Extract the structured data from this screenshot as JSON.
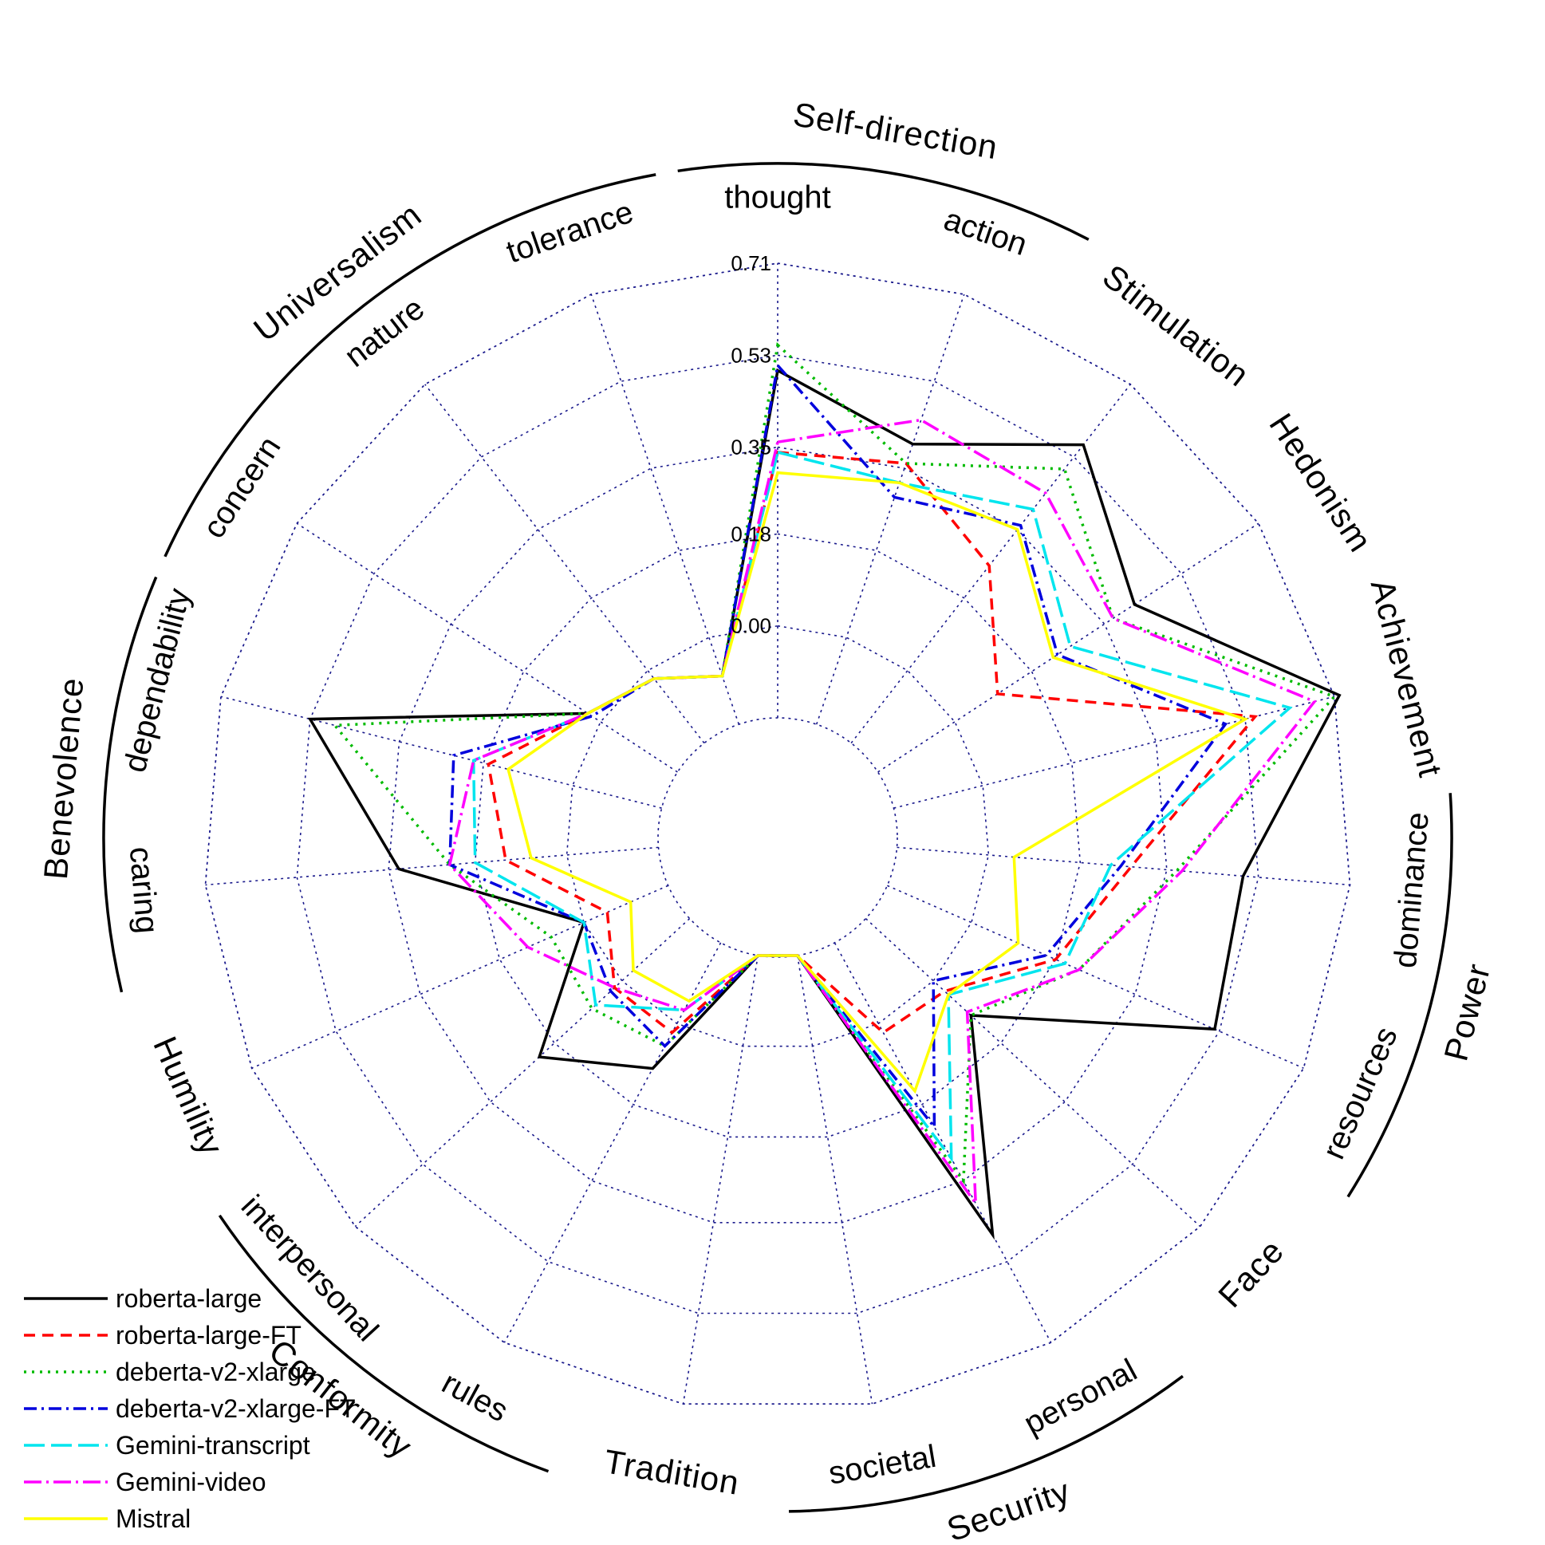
{
  "chart_data": {
    "type": "radar",
    "title": "",
    "radial_ticks": [
      "0.00",
      "0.18",
      "0.35",
      "0.53",
      "0.71"
    ],
    "rlim": [
      -0.18,
      0.71
    ],
    "axes": [
      "thought",
      "action",
      "Stimulation",
      "Hedonism",
      "Achievement",
      "dominance",
      "resources",
      "Face",
      "personal",
      "societal",
      "Tradition",
      "rules",
      "interpersonal",
      "Humility",
      "caring",
      "dependability",
      "concern",
      "nature",
      "tolerance"
    ],
    "groups": [
      {
        "label": "Self-direction",
        "axes": [
          "thought",
          "action"
        ],
        "arc": true
      },
      {
        "label": "Stimulation",
        "axes": [
          "Stimulation"
        ],
        "arc": false
      },
      {
        "label": "Hedonism",
        "axes": [
          "Hedonism"
        ],
        "arc": false
      },
      {
        "label": "Achievement",
        "axes": [
          "Achievement"
        ],
        "arc": false
      },
      {
        "label": "Power",
        "axes": [
          "dominance",
          "resources"
        ],
        "arc": true
      },
      {
        "label": "Face",
        "axes": [
          "Face"
        ],
        "arc": false
      },
      {
        "label": "Security",
        "axes": [
          "personal",
          "societal"
        ],
        "arc": true
      },
      {
        "label": "Tradition",
        "axes": [
          "Tradition"
        ],
        "arc": false
      },
      {
        "label": "Conformity",
        "axes": [
          "rules",
          "interpersonal"
        ],
        "arc": true
      },
      {
        "label": "Humility",
        "axes": [
          "Humility"
        ],
        "arc": false
      },
      {
        "label": "Benevolence",
        "axes": [
          "caring",
          "dependability"
        ],
        "arc": true
      },
      {
        "label": "Universalism",
        "axes": [
          "concern",
          "nature",
          "tolerance"
        ],
        "arc": true
      }
    ],
    "series": [
      {
        "name": "roberta-large",
        "color": "#000000",
        "dash": "",
        "values": [
          0.5,
          0.4,
          0.56,
          0.42,
          0.72,
          0.5,
          0.52,
          0.1,
          0.47,
          -0.18,
          -0.18,
          0.1,
          0.22,
          0.0,
          0.33,
          0.53,
          0.03,
          -0.02,
          -0.08
        ]
      },
      {
        "name": "roberta-large-FT",
        "color": "#ff0000",
        "dash": "14 9",
        "values": [
          0.34,
          0.36,
          0.26,
          0.1,
          0.55,
          0.28,
          0.18,
          0.03,
          0.02,
          -0.18,
          -0.18,
          0.02,
          0.02,
          -0.05,
          0.12,
          0.17,
          0.03,
          -0.02,
          -0.08
        ]
      },
      {
        "name": "deberta-v2-xlarge",
        "color": "#00bb00",
        "dash": "3 7",
        "values": [
          0.55,
          0.36,
          0.5,
          0.37,
          0.71,
          0.37,
          0.23,
          0.1,
          0.35,
          -0.18,
          -0.18,
          0.05,
          0.08,
          0.07,
          0.23,
          0.48,
          0.03,
          -0.02,
          -0.08
        ]
      },
      {
        "name": "deberta-v2-xlarge-FT",
        "color": "#0000dd",
        "dash": "16 6 3 6",
        "values": [
          0.51,
          0.29,
          0.36,
          0.24,
          0.49,
          0.26,
          0.16,
          0.0,
          0.23,
          -0.18,
          -0.18,
          0.05,
          0.03,
          0.0,
          0.23,
          0.24,
          0.02,
          -0.02,
          -0.08
        ]
      },
      {
        "name": "Gemini-transcript",
        "color": "#00e5ee",
        "dash": "26 8",
        "values": [
          0.34,
          0.32,
          0.4,
          0.27,
          0.62,
          0.24,
          0.2,
          0.04,
          0.3,
          -0.18,
          -0.18,
          -0.03,
          0.07,
          0.0,
          0.18,
          0.2,
          0.03,
          -0.02,
          -0.08
        ]
      },
      {
        "name": "Gemini-video",
        "color": "#ff00ff",
        "dash": "22 6 3 6",
        "values": [
          0.36,
          0.45,
          0.44,
          0.37,
          0.67,
          0.38,
          0.23,
          0.09,
          0.4,
          -0.18,
          -0.18,
          -0.03,
          0.02,
          0.12,
          0.23,
          0.2,
          0.03,
          -0.02,
          -0.08
        ]
      },
      {
        "name": "Mistral",
        "color": "#ffff00",
        "dash": "",
        "values": [
          0.3,
          0.32,
          0.35,
          0.23,
          0.53,
          0.05,
          0.1,
          0.04,
          0.15,
          -0.18,
          -0.18,
          -0.05,
          -0.03,
          -0.1,
          0.07,
          0.13,
          0.03,
          -0.02,
          -0.08
        ]
      }
    ],
    "legend_position": "bottom-left"
  }
}
